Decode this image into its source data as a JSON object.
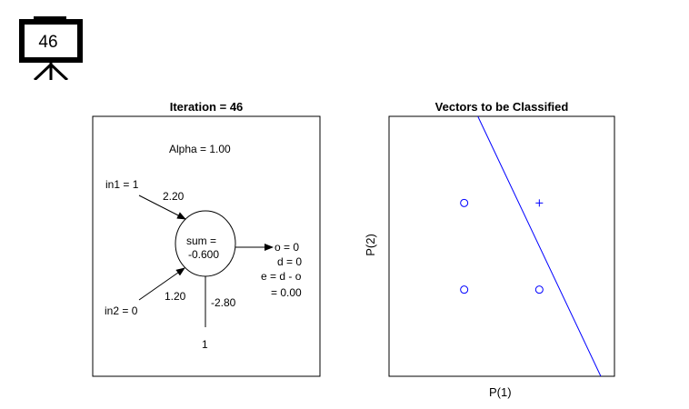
{
  "slide": {
    "number": "46"
  },
  "network_panel": {
    "title": "Iteration = 46",
    "alpha_text": "Alpha = 1.00",
    "input1": "in1 = 1",
    "input2": "in2 = 0",
    "weight1": "2.20",
    "weight2": "1.20",
    "bias_weight": "-2.80",
    "bias_input": "1",
    "sum_label": "sum =",
    "sum_value": "-0.600",
    "output": "o = 0",
    "desired": "d = 0",
    "error_formula": "e = d - o",
    "error_value": "= 0.00"
  },
  "classify_panel": {
    "title": "Vectors to be Classified",
    "xlabel": "P(1)",
    "ylabel": "P(2)",
    "accent_color": "#0000ff"
  },
  "chart_data": {
    "type": "scatter",
    "title": "Vectors to be Classified",
    "xlabel": "P(1)",
    "ylabel": "P(2)",
    "xlim": [
      -1,
      2
    ],
    "ylim": [
      -1,
      2
    ],
    "grid": false,
    "series": [
      {
        "marker": "o",
        "x": [
          0,
          0,
          1
        ],
        "y": [
          0,
          1,
          0
        ]
      },
      {
        "marker": "+",
        "x": [
          1
        ],
        "y": [
          1
        ]
      }
    ],
    "decision_boundary": {
      "w1": 2.2,
      "w2": 1.2,
      "bias": -2.8
    }
  }
}
